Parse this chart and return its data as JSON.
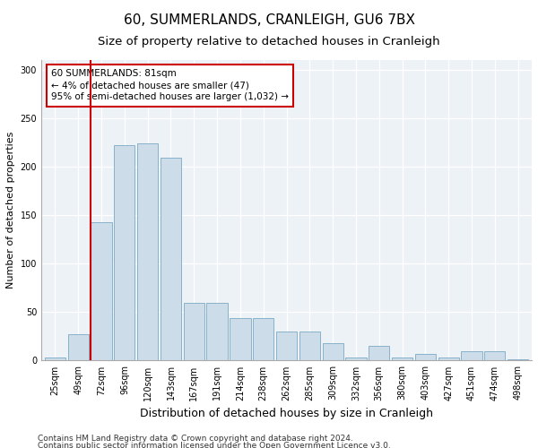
{
  "title": "60, SUMMERLANDS, CRANLEIGH, GU6 7BX",
  "subtitle": "Size of property relative to detached houses in Cranleigh",
  "xlabel": "Distribution of detached houses by size in Cranleigh",
  "ylabel": "Number of detached properties",
  "footnote1": "Contains HM Land Registry data © Crown copyright and database right 2024.",
  "footnote2": "Contains public sector information licensed under the Open Government Licence v3.0.",
  "categories": [
    "25sqm",
    "49sqm",
    "72sqm",
    "96sqm",
    "120sqm",
    "143sqm",
    "167sqm",
    "191sqm",
    "214sqm",
    "238sqm",
    "262sqm",
    "285sqm",
    "309sqm",
    "332sqm",
    "356sqm",
    "380sqm",
    "403sqm",
    "427sqm",
    "451sqm",
    "474sqm",
    "498sqm"
  ],
  "values": [
    3,
    27,
    143,
    222,
    224,
    209,
    60,
    60,
    44,
    44,
    30,
    30,
    18,
    3,
    15,
    3,
    7,
    3,
    10,
    10,
    1
  ],
  "bar_color": "#ccdce8",
  "bar_edge_color": "#7aaac4",
  "annotation_line_color": "#cc0000",
  "annotation_box_text": "60 SUMMERLANDS: 81sqm\n← 4% of detached houses are smaller (47)\n95% of semi-detached houses are larger (1,032) →",
  "annotation_box_color": "#cc0000",
  "ylim": [
    0,
    310
  ],
  "yticks": [
    0,
    50,
    100,
    150,
    200,
    250,
    300
  ],
  "title_fontsize": 11,
  "subtitle_fontsize": 9.5,
  "xlabel_fontsize": 9,
  "ylabel_fontsize": 8,
  "tick_fontsize": 7,
  "annot_fontsize": 7.5,
  "footnote_fontsize": 6.5,
  "bg_color": "#edf2f7"
}
